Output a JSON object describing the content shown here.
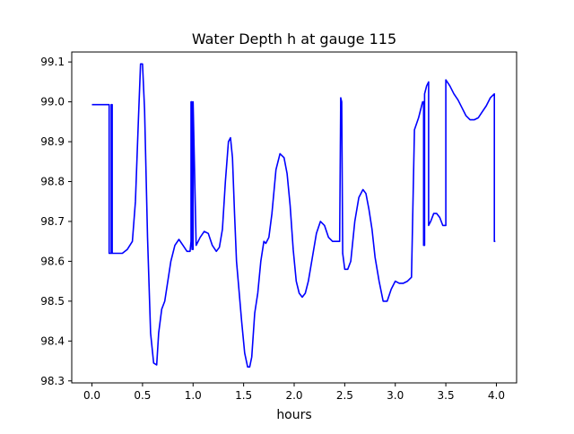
{
  "chart_data": {
    "type": "line",
    "title": "Water Depth h at gauge 115",
    "xlabel": "hours",
    "ylabel": "",
    "xlim": [
      -0.2,
      4.2
    ],
    "ylim": [
      98.295,
      99.125
    ],
    "x_ticks": [
      0.0,
      0.5,
      1.0,
      1.5,
      2.0,
      2.5,
      3.0,
      3.5,
      4.0
    ],
    "x_tick_labels": [
      "0.0",
      "0.5",
      "1.0",
      "1.5",
      "2.0",
      "2.5",
      "3.0",
      "3.5",
      "4.0"
    ],
    "y_ticks": [
      98.3,
      98.4,
      98.5,
      98.6,
      98.7,
      98.8,
      98.9,
      99.0,
      99.1
    ],
    "y_tick_labels": [
      "98.3",
      "98.4",
      "98.5",
      "98.6",
      "98.7",
      "98.8",
      "98.9",
      "99.0",
      "99.1"
    ],
    "grid": false,
    "series": [
      {
        "name": "h",
        "color": "#0000ff",
        "x": [
          0.0,
          0.17,
          0.17,
          0.19,
          0.19,
          0.2,
          0.2,
          0.21,
          0.21,
          0.3,
          0.35,
          0.4,
          0.43,
          0.46,
          0.48,
          0.5,
          0.52,
          0.55,
          0.58,
          0.61,
          0.64,
          0.66,
          0.69,
          0.72,
          0.75,
          0.78,
          0.82,
          0.86,
          0.9,
          0.94,
          0.97,
          0.98,
          0.98,
          0.99,
          0.99,
          1.0,
          1.0,
          1.03,
          1.07,
          1.11,
          1.15,
          1.19,
          1.23,
          1.26,
          1.29,
          1.32,
          1.35,
          1.37,
          1.39,
          1.41,
          1.43,
          1.45,
          1.48,
          1.51,
          1.54,
          1.56,
          1.58,
          1.61,
          1.64,
          1.67,
          1.7,
          1.72,
          1.75,
          1.78,
          1.82,
          1.86,
          1.9,
          1.93,
          1.96,
          1.99,
          2.02,
          2.05,
          2.08,
          2.11,
          2.14,
          2.18,
          2.22,
          2.26,
          2.3,
          2.34,
          2.38,
          2.42,
          2.45,
          2.46,
          2.46,
          2.47,
          2.47,
          2.48,
          2.48,
          2.5,
          2.53,
          2.56,
          2.6,
          2.64,
          2.68,
          2.71,
          2.74,
          2.77,
          2.8,
          2.84,
          2.88,
          2.92,
          2.96,
          3.0,
          3.04,
          3.08,
          3.12,
          3.16,
          3.19,
          3.19,
          3.23,
          3.27,
          3.28,
          3.28,
          3.29,
          3.29,
          3.31,
          3.33,
          3.33,
          3.35,
          3.38,
          3.41,
          3.44,
          3.47,
          3.5,
          3.5,
          3.54,
          3.58,
          3.62,
          3.66,
          3.7,
          3.74,
          3.78,
          3.82,
          3.86,
          3.9,
          3.94,
          3.98,
          3.98,
          3.99
        ],
        "y": [
          98.993,
          98.993,
          98.62,
          98.62,
          98.993,
          98.993,
          98.62,
          98.62,
          98.62,
          98.62,
          98.63,
          98.65,
          98.75,
          98.96,
          99.095,
          99.095,
          98.98,
          98.66,
          98.42,
          98.345,
          98.34,
          98.42,
          98.48,
          98.5,
          98.55,
          98.6,
          98.64,
          98.655,
          98.64,
          98.625,
          98.625,
          98.65,
          99.0,
          99.0,
          98.63,
          98.63,
          99.0,
          98.64,
          98.66,
          98.675,
          98.67,
          98.64,
          98.625,
          98.635,
          98.68,
          98.8,
          98.9,
          98.91,
          98.86,
          98.72,
          98.6,
          98.54,
          98.45,
          98.37,
          98.335,
          98.335,
          98.36,
          98.47,
          98.52,
          98.6,
          98.65,
          98.645,
          98.66,
          98.72,
          98.83,
          98.87,
          98.86,
          98.82,
          98.74,
          98.63,
          98.55,
          98.52,
          98.51,
          98.52,
          98.55,
          98.61,
          98.67,
          98.7,
          98.69,
          98.66,
          98.65,
          98.65,
          98.65,
          99.01,
          99.01,
          99.0,
          99.0,
          98.62,
          98.62,
          98.58,
          98.58,
          98.6,
          98.7,
          98.76,
          98.78,
          98.77,
          98.73,
          98.68,
          98.61,
          98.55,
          98.5,
          98.5,
          98.53,
          98.55,
          98.545,
          98.545,
          98.55,
          98.56,
          98.93,
          98.93,
          98.96,
          99.0,
          99.0,
          98.64,
          98.64,
          99.02,
          99.04,
          99.05,
          98.69,
          98.7,
          98.72,
          98.72,
          98.71,
          98.69,
          98.69,
          99.055,
          99.04,
          99.02,
          99.005,
          98.985,
          98.965,
          98.955,
          98.955,
          98.96,
          98.975,
          98.99,
          99.01,
          99.02,
          98.65,
          98.65
        ]
      }
    ]
  }
}
